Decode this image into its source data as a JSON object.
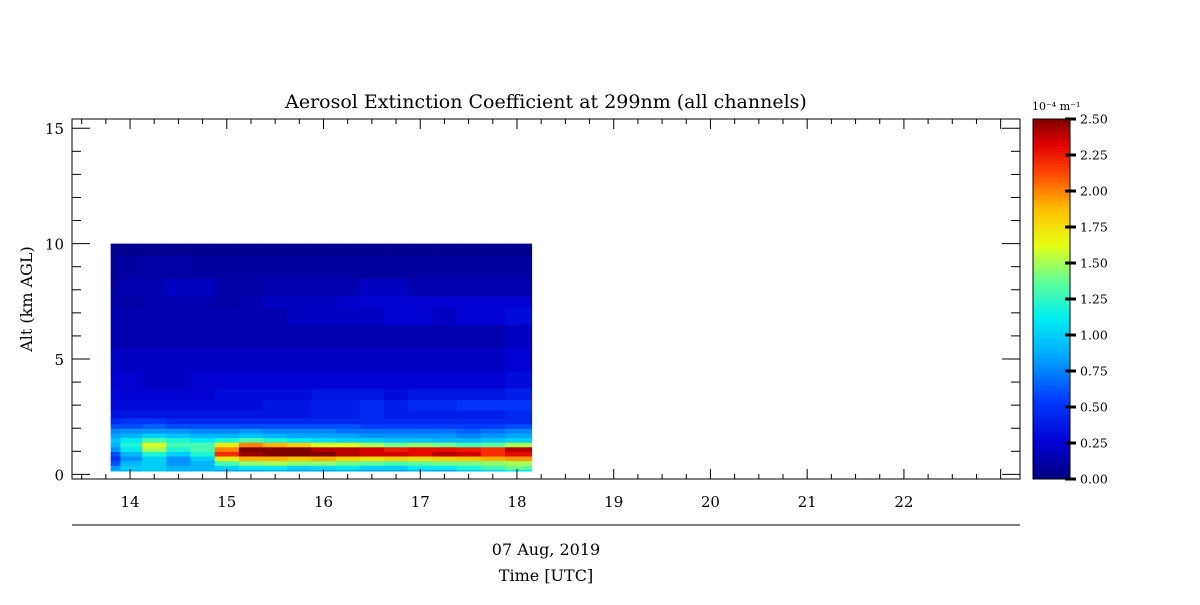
{
  "chart_data": {
    "type": "heatmap",
    "title": "Aerosol Extinction Coefficient at 299nm (all channels)",
    "ylabel": "Alt (km AGL)",
    "date_label": "07 Aug, 2019",
    "xlabel": "Time [UTC]",
    "xlim": [
      13.4,
      23.2
    ],
    "ylim": [
      -0.2,
      15.4
    ],
    "x_ticks": [
      14,
      15,
      16,
      17,
      18,
      19,
      20,
      21,
      22
    ],
    "x_tick_labels": [
      "14",
      "15",
      "16",
      "17",
      "18",
      "19",
      "20",
      "21",
      "22"
    ],
    "y_ticks": [
      0,
      5,
      10,
      15
    ],
    "y_tick_labels": [
      "0",
      "5",
      "10",
      "15"
    ],
    "colorbar": {
      "unit_label": "10⁻⁴ m⁻¹",
      "min": 0.0,
      "max": 2.5,
      "ticks": [
        0.0,
        0.25,
        0.5,
        0.75,
        1.0,
        1.25,
        1.5,
        1.75,
        2.0,
        2.25,
        2.5
      ],
      "tick_labels": [
        "0.00",
        "0.25",
        "0.50",
        "0.75",
        "1.00",
        "1.25",
        "1.50",
        "1.75",
        "2.00",
        "2.25",
        "2.50"
      ],
      "colormap": "jet"
    },
    "data_extent": {
      "time_start": 13.8,
      "time_end": 18.15,
      "alt_bottom": 0.15,
      "alt_top": 10.0
    },
    "times": [
      13.8,
      14.0,
      14.25,
      14.5,
      14.75,
      15.0,
      15.25,
      15.5,
      15.75,
      16.0,
      16.25,
      16.5,
      16.75,
      17.0,
      17.25,
      17.5,
      17.75,
      18.0,
      18.15
    ],
    "altitudes": [
      0.15,
      0.3,
      0.5,
      0.7,
      0.9,
      1.1,
      1.3,
      1.5,
      1.7,
      1.9,
      2.1,
      2.3,
      2.6,
      3.0,
      3.5,
      4.0,
      5.0,
      6.0,
      7.0,
      7.5,
      8.0,
      9.0,
      10.0
    ],
    "values": [
      [
        0.9,
        0.9,
        1.0,
        0.9,
        0.9,
        0.85,
        0.85,
        0.9,
        0.85,
        0.85,
        0.9,
        0.85,
        0.85,
        0.9,
        0.85,
        0.95,
        1.0,
        1.1,
        1.1
      ],
      [
        0.8,
        1.0,
        1.0,
        0.9,
        0.9,
        1.0,
        1.1,
        1.1,
        1.0,
        1.05,
        1.1,
        1.0,
        1.0,
        1.1,
        1.1,
        1.2,
        1.3,
        1.4,
        1.35
      ],
      [
        0.6,
        0.9,
        1.0,
        0.8,
        0.9,
        1.3,
        1.45,
        1.5,
        1.45,
        1.45,
        1.4,
        1.35,
        1.3,
        1.35,
        1.4,
        1.4,
        1.45,
        1.5,
        1.5
      ],
      [
        0.5,
        0.8,
        1.0,
        0.8,
        1.0,
        1.7,
        1.9,
        1.9,
        1.85,
        1.9,
        1.8,
        1.75,
        1.8,
        1.75,
        1.8,
        1.85,
        1.9,
        1.95,
        1.95
      ],
      [
        0.6,
        0.9,
        1.2,
        1.0,
        1.2,
        2.2,
        2.45,
        2.5,
        2.5,
        2.5,
        2.4,
        2.35,
        2.35,
        2.3,
        2.4,
        2.35,
        2.2,
        2.3,
        2.3
      ],
      [
        0.8,
        1.1,
        1.5,
        1.2,
        1.3,
        2.0,
        2.5,
        2.5,
        2.5,
        2.4,
        2.4,
        2.35,
        2.25,
        2.3,
        2.3,
        2.25,
        2.2,
        2.4,
        2.4
      ],
      [
        0.9,
        1.2,
        1.6,
        1.3,
        1.3,
        1.7,
        2.0,
        1.9,
        1.8,
        1.6,
        1.6,
        1.5,
        1.4,
        1.45,
        1.4,
        1.3,
        1.35,
        1.5,
        1.5
      ],
      [
        0.95,
        1.1,
        1.3,
        1.2,
        1.1,
        1.2,
        1.3,
        1.2,
        1.1,
        1.05,
        1.0,
        1.0,
        0.95,
        0.95,
        0.9,
        0.9,
        0.95,
        1.0,
        1.0
      ],
      [
        0.85,
        0.9,
        1.0,
        0.95,
        0.9,
        0.9,
        0.95,
        0.9,
        0.85,
        0.85,
        0.85,
        0.8,
        0.8,
        0.8,
        0.8,
        0.75,
        0.8,
        0.85,
        0.85
      ],
      [
        0.75,
        0.8,
        0.8,
        0.8,
        0.75,
        0.75,
        0.8,
        0.75,
        0.75,
        0.75,
        0.7,
        0.7,
        0.7,
        0.7,
        0.7,
        0.65,
        0.7,
        0.75,
        0.75
      ],
      [
        0.6,
        0.6,
        0.65,
        0.6,
        0.6,
        0.6,
        0.6,
        0.6,
        0.6,
        0.6,
        0.6,
        0.55,
        0.55,
        0.55,
        0.55,
        0.55,
        0.55,
        0.6,
        0.6
      ],
      [
        0.45,
        0.5,
        0.5,
        0.45,
        0.45,
        0.45,
        0.45,
        0.45,
        0.45,
        0.45,
        0.45,
        0.45,
        0.45,
        0.45,
        0.45,
        0.45,
        0.45,
        0.45,
        0.45
      ],
      [
        0.35,
        0.35,
        0.35,
        0.35,
        0.35,
        0.35,
        0.35,
        0.35,
        0.35,
        0.4,
        0.4,
        0.45,
        0.4,
        0.4,
        0.4,
        0.4,
        0.4,
        0.45,
        0.45
      ],
      [
        0.3,
        0.3,
        0.3,
        0.3,
        0.3,
        0.3,
        0.3,
        0.35,
        0.35,
        0.4,
        0.4,
        0.45,
        0.4,
        0.45,
        0.45,
        0.5,
        0.5,
        0.5,
        0.5
      ],
      [
        0.28,
        0.25,
        0.25,
        0.25,
        0.25,
        0.3,
        0.3,
        0.3,
        0.3,
        0.35,
        0.35,
        0.35,
        0.3,
        0.35,
        0.35,
        0.35,
        0.35,
        0.4,
        0.4
      ],
      [
        0.25,
        0.25,
        0.2,
        0.2,
        0.25,
        0.25,
        0.25,
        0.25,
        0.25,
        0.25,
        0.25,
        0.25,
        0.25,
        0.25,
        0.25,
        0.25,
        0.25,
        0.3,
        0.3
      ],
      [
        0.2,
        0.2,
        0.2,
        0.2,
        0.2,
        0.2,
        0.2,
        0.2,
        0.2,
        0.2,
        0.2,
        0.2,
        0.2,
        0.2,
        0.2,
        0.2,
        0.2,
        0.25,
        0.25
      ],
      [
        0.15,
        0.15,
        0.15,
        0.15,
        0.15,
        0.15,
        0.15,
        0.15,
        0.15,
        0.15,
        0.15,
        0.15,
        0.15,
        0.15,
        0.15,
        0.15,
        0.15,
        0.2,
        0.2
      ],
      [
        0.15,
        0.15,
        0.15,
        0.15,
        0.15,
        0.15,
        0.15,
        0.15,
        0.2,
        0.2,
        0.2,
        0.2,
        0.25,
        0.25,
        0.2,
        0.25,
        0.25,
        0.3,
        0.3
      ],
      [
        0.12,
        0.12,
        0.15,
        0.15,
        0.15,
        0.12,
        0.15,
        0.2,
        0.2,
        0.2,
        0.22,
        0.25,
        0.25,
        0.25,
        0.25,
        0.25,
        0.25,
        0.25,
        0.25
      ],
      [
        0.1,
        0.15,
        0.15,
        0.2,
        0.2,
        0.12,
        0.12,
        0.15,
        0.15,
        0.15,
        0.15,
        0.2,
        0.2,
        0.15,
        0.15,
        0.15,
        0.15,
        0.15,
        0.15
      ],
      [
        0.08,
        0.1,
        0.12,
        0.12,
        0.1,
        0.1,
        0.1,
        0.1,
        0.1,
        0.1,
        0.1,
        0.1,
        0.1,
        0.1,
        0.1,
        0.1,
        0.1,
        0.1,
        0.1
      ],
      [
        0.05,
        0.05,
        0.05,
        0.05,
        0.05,
        0.05,
        0.05,
        0.05,
        0.05,
        0.05,
        0.05,
        0.05,
        0.05,
        0.05,
        0.05,
        0.05,
        0.05,
        0.05,
        0.05
      ]
    ]
  }
}
